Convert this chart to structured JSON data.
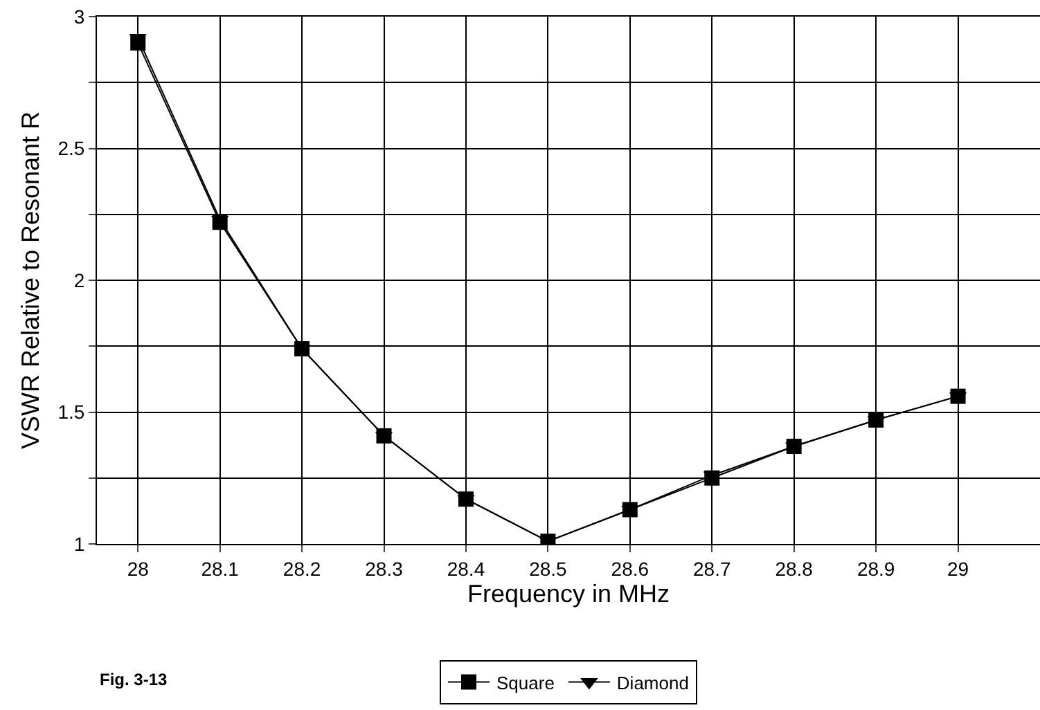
{
  "chart_data": {
    "type": "line",
    "xlabel": "Frequency in MHz",
    "ylabel": "VSWR Relative to Resonant R",
    "x": [
      28,
      28.1,
      28.2,
      28.3,
      28.4,
      28.5,
      28.6,
      28.7,
      28.8,
      28.9,
      29
    ],
    "series": [
      {
        "name": "Square",
        "color": "#000000",
        "marker": "square",
        "values": [
          2.9,
          2.22,
          1.74,
          1.41,
          1.17,
          1.01,
          1.13,
          1.25,
          1.37,
          1.47,
          1.56
        ]
      },
      {
        "name": "Diamond",
        "color": "#000000",
        "marker": "triangle",
        "values": [
          2.92,
          2.23,
          1.74,
          1.41,
          1.17,
          1.01,
          1.13,
          1.26,
          1.37,
          1.47,
          1.56
        ]
      }
    ],
    "xlim": [
      27.95,
      29.1
    ],
    "xticks": [
      28,
      28.1,
      28.2,
      28.3,
      28.4,
      28.5,
      28.6,
      28.7,
      28.8,
      28.9,
      29
    ],
    "ylim": [
      1,
      3
    ],
    "yticks": [
      1,
      {
        "value": 1.25,
        "label": null
      },
      1.5,
      {
        "value": 1.75,
        "label": null
      },
      2,
      {
        "value": 2.25,
        "label": null
      },
      2.5,
      {
        "value": 2.75,
        "label": null
      },
      3
    ],
    "grid": true,
    "legend": "bottom",
    "line_style": "solid",
    "annotations": [
      "Fig. 3-13"
    ]
  }
}
